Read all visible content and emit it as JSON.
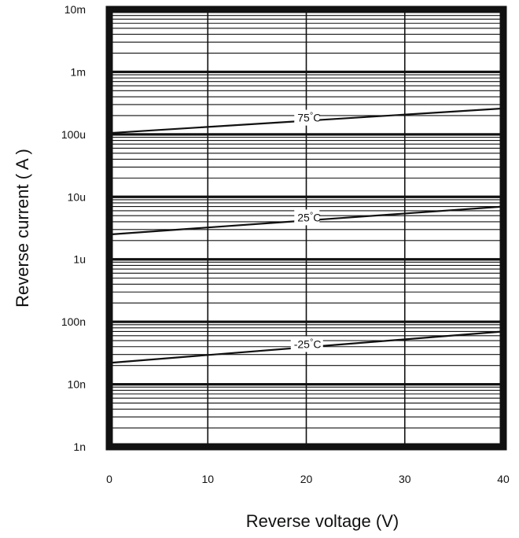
{
  "chart_data": {
    "type": "line",
    "title": "",
    "xlabel": "Reverse voltage (V)",
    "ylabel": "Reverse current ( A )",
    "x_scale": "linear",
    "y_scale": "log",
    "xlim": [
      0,
      40
    ],
    "ylim": [
      1e-09,
      0.01
    ],
    "x_ticks": [
      0,
      10,
      20,
      30,
      40
    ],
    "x_tick_labels": [
      "0",
      "10",
      "20",
      "30",
      "40"
    ],
    "y_ticks": [
      1e-09,
      1e-08,
      1e-07,
      1e-06,
      1e-05,
      0.0001,
      0.001,
      0.01
    ],
    "y_tick_labels": [
      "1n",
      "10n",
      "100n",
      "1u",
      "10u",
      "100u",
      "1m",
      "10m"
    ],
    "grid": true,
    "legend": "none",
    "series": [
      {
        "name": "75°C",
        "label_text": "75",
        "label_sup": "°C",
        "label_x": 19.9,
        "x": [
          0,
          40
        ],
        "y": [
          0.000105,
          0.00026
        ]
      },
      {
        "name": "25°C",
        "label_text": "25",
        "label_sup": "°C",
        "label_x": 19.9,
        "x": [
          0,
          40
        ],
        "y": [
          2.5e-06,
          7e-06
        ]
      },
      {
        "name": "-25°C",
        "label_text": "-25",
        "label_sup": "°C",
        "label_x": 19.9,
        "x": [
          0,
          40
        ],
        "y": [
          2.2e-08,
          7e-08
        ]
      }
    ]
  }
}
